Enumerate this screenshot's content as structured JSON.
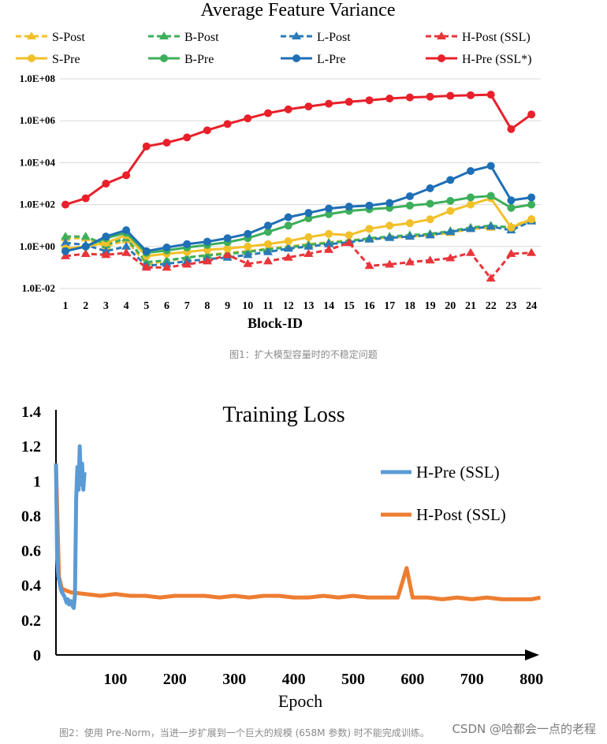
{
  "charts": {
    "figure1": {
      "title": "Average Feature Variance",
      "x_label": "Block-ID",
      "y_ticks": [
        "1.0E+08",
        "1.0E+06",
        "1.0E+04",
        "1.0E+02",
        "1.0E+00",
        "1.0E-02"
      ],
      "caption": "图1：扩大模型容量时的不稳定问题"
    },
    "figure2": {
      "title": "Training Loss",
      "x_label": "Epoch",
      "y_ticks": [
        "1.4",
        "1.2",
        "1",
        "0.8",
        "0.6",
        "0.4",
        "0.2",
        "0"
      ],
      "x_ticks": [
        "100",
        "200",
        "300",
        "400",
        "500",
        "600",
        "700",
        "800"
      ],
      "caption": "图2：使用 Pre-Norm，当进一步扩展到一个巨大的规模 (658M 参数) 时不能完成训练。"
    }
  },
  "watermark": "CSDN @哈都会一点的老程",
  "chart_data": [
    {
      "type": "line",
      "title": "Average Feature Variance",
      "xlabel": "Block-ID",
      "ylabel": "",
      "y_scale": "log",
      "ylim": [
        0.01,
        100000000
      ],
      "x": [
        1,
        2,
        3,
        4,
        5,
        6,
        7,
        8,
        9,
        10,
        11,
        12,
        13,
        14,
        15,
        16,
        17,
        18,
        19,
        20,
        21,
        22,
        23,
        24
      ],
      "legend_position": "top",
      "series": [
        {
          "name": "S-Post",
          "color": "#F2C029",
          "style": "dashed",
          "marker": "triangle",
          "values": [
            2.5,
            2.5,
            1.0,
            2.0,
            0.15,
            0.2,
            0.3,
            0.4,
            0.5,
            0.6,
            0.8,
            1.0,
            1.3,
            1.6,
            2.0,
            2.3,
            2.7,
            3.0,
            3.5,
            4.5,
            7,
            8,
            9,
            20
          ]
        },
        {
          "name": "B-Post",
          "color": "#3DAE5A",
          "style": "dashed",
          "marker": "triangle",
          "values": [
            3,
            3,
            1.2,
            2.5,
            0.18,
            0.22,
            0.3,
            0.38,
            0.45,
            0.55,
            0.75,
            0.9,
            1.2,
            1.5,
            1.8,
            2.5,
            3,
            3.5,
            4,
            5.5,
            8,
            10,
            8,
            18
          ]
        },
        {
          "name": "L-Post",
          "color": "#2A7AB8",
          "style": "dashed",
          "marker": "triangle",
          "values": [
            1.5,
            1.2,
            0.6,
            1.0,
            0.12,
            0.15,
            0.2,
            0.25,
            0.3,
            0.4,
            0.55,
            0.8,
            1.0,
            1.3,
            1.6,
            2.2,
            2.6,
            3,
            3.5,
            5,
            7,
            9,
            6,
            16
          ]
        },
        {
          "name": "H-Post (SSL)",
          "color": "#E8353A",
          "style": "dashed",
          "marker": "triangle",
          "values": [
            0.35,
            0.45,
            0.4,
            0.5,
            0.1,
            0.1,
            0.14,
            0.2,
            0.4,
            0.15,
            0.2,
            0.3,
            0.45,
            0.7,
            1.5,
            0.12,
            0.14,
            0.18,
            0.22,
            0.28,
            0.5,
            0.03,
            0.45,
            0.5
          ]
        },
        {
          "name": "S-Pre",
          "color": "#F2C029",
          "style": "solid",
          "marker": "circle",
          "values": [
            0.8,
            1.0,
            1.5,
            3.5,
            0.35,
            0.45,
            0.55,
            0.7,
            0.8,
            1.0,
            1.3,
            1.8,
            2.8,
            4,
            3.5,
            7,
            10,
            13,
            20,
            50,
            100,
            200,
            8,
            20
          ]
        },
        {
          "name": "B-Pre",
          "color": "#3DAE5A",
          "style": "solid",
          "marker": "circle",
          "values": [
            0.6,
            1.0,
            2.5,
            4.5,
            0.5,
            0.65,
            0.9,
            1.2,
            1.6,
            2.5,
            5,
            10,
            22,
            35,
            50,
            60,
            70,
            90,
            110,
            150,
            220,
            260,
            70,
            100
          ]
        },
        {
          "name": "L-Pre",
          "color": "#1F6FB5",
          "style": "solid",
          "marker": "circle",
          "values": [
            0.6,
            1.0,
            3.0,
            6.0,
            0.6,
            0.9,
            1.3,
            1.7,
            2.5,
            4,
            10,
            25,
            40,
            65,
            80,
            90,
            120,
            250,
            600,
            1500,
            4000,
            7000,
            160,
            220
          ]
        },
        {
          "name": "H-Pre (SSL*)",
          "color": "#E8202A",
          "style": "solid",
          "marker": "circle",
          "values": [
            100,
            200,
            1000,
            2500,
            60000,
            90000,
            160000,
            350000,
            700000,
            1300000,
            2300000,
            3500000,
            4800000,
            6500000,
            8000000,
            9500000,
            11500000,
            13000000,
            14000000,
            15500000,
            16500000,
            17500000,
            400000,
            2000000
          ]
        }
      ]
    },
    {
      "type": "line",
      "title": "Training Loss",
      "xlabel": "Epoch",
      "ylabel": "",
      "xlim": [
        0,
        810
      ],
      "ylim": [
        0,
        1.4
      ],
      "legend_position": "right",
      "series": [
        {
          "name": "H-Pre (SSL)",
          "color": "#5B9BD5",
          "x": [
            0,
            2,
            4,
            6,
            8,
            10,
            12,
            15,
            18,
            20,
            22,
            25,
            28,
            30,
            32,
            34,
            36,
            38,
            40,
            42,
            44,
            46,
            48
          ],
          "y": [
            1.1,
            0.55,
            0.45,
            0.42,
            0.38,
            0.36,
            0.35,
            0.33,
            0.3,
            0.32,
            0.29,
            0.31,
            0.28,
            0.27,
            0.35,
            0.9,
            1.08,
            0.95,
            1.2,
            0.98,
            1.1,
            0.95,
            1.05
          ]
        },
        {
          "name": "H-Post (SSL)",
          "color": "#ED7D31",
          "x": [
            0,
            5,
            10,
            25,
            50,
            75,
            100,
            125,
            150,
            175,
            200,
            225,
            250,
            275,
            300,
            325,
            350,
            375,
            400,
            425,
            450,
            475,
            500,
            525,
            550,
            575,
            590,
            600,
            625,
            650,
            675,
            700,
            725,
            750,
            775,
            800,
            815
          ],
          "y": [
            1.1,
            0.45,
            0.38,
            0.36,
            0.35,
            0.34,
            0.35,
            0.34,
            0.34,
            0.33,
            0.34,
            0.34,
            0.34,
            0.33,
            0.34,
            0.33,
            0.34,
            0.34,
            0.33,
            0.33,
            0.34,
            0.33,
            0.34,
            0.33,
            0.33,
            0.33,
            0.5,
            0.33,
            0.33,
            0.32,
            0.33,
            0.32,
            0.33,
            0.32,
            0.32,
            0.32,
            0.33
          ]
        }
      ]
    }
  ]
}
